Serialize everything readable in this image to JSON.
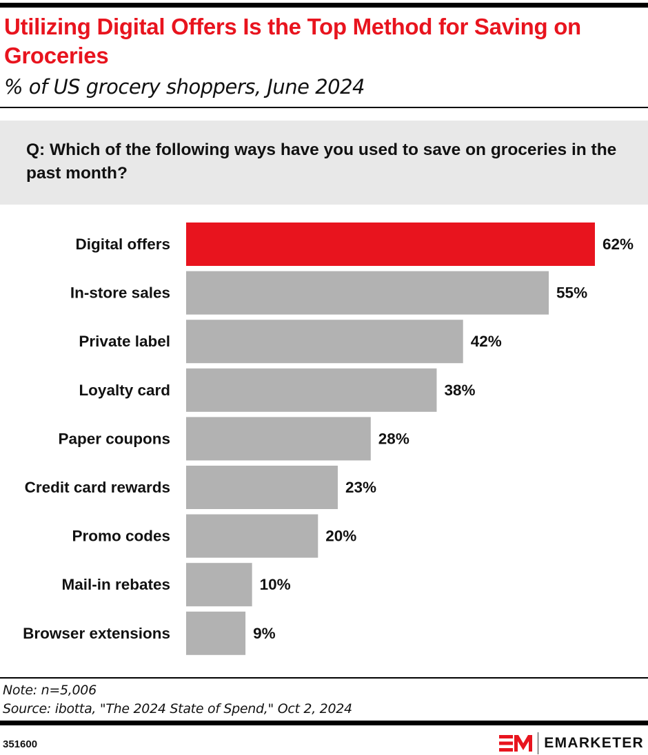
{
  "header": {
    "title": "Utilizing Digital Offers Is the Top Method for Saving on Groceries",
    "subtitle": "% of US grocery shoppers, June 2024"
  },
  "question": "Q: Which of the following ways have you used to save on groceries in the past month?",
  "colors": {
    "highlight": "#E8141E",
    "bar": "#B2B2B2",
    "question_bg": "#E8E8E8"
  },
  "chart_data": {
    "type": "bar",
    "orientation": "horizontal",
    "title": "Utilizing Digital Offers Is the Top Method for Saving on Groceries",
    "subtitle": "% of US grocery shoppers, June 2024",
    "xlabel": "",
    "ylabel": "",
    "unit": "%",
    "xlim": [
      0,
      62
    ],
    "grid": false,
    "legend": "none",
    "highlight_index": 0,
    "categories": [
      "Digital offers",
      "In-store sales",
      "Private label",
      "Loyalty card",
      "Paper coupons",
      "Credit card rewards",
      "Promo codes",
      "Mail-in rebates",
      "Browser extensions"
    ],
    "values": [
      62,
      55,
      42,
      38,
      28,
      23,
      20,
      10,
      9
    ],
    "value_labels": [
      "62%",
      "55%",
      "42%",
      "38%",
      "28%",
      "23%",
      "20%",
      "10%",
      "9%"
    ]
  },
  "footer": {
    "note": "Note: n=5,006",
    "source": "Source: ibotta, \"The 2024 State of Spend,\" Oct 2, 2024",
    "chart_id": "351600",
    "brand": "EMARKETER"
  }
}
